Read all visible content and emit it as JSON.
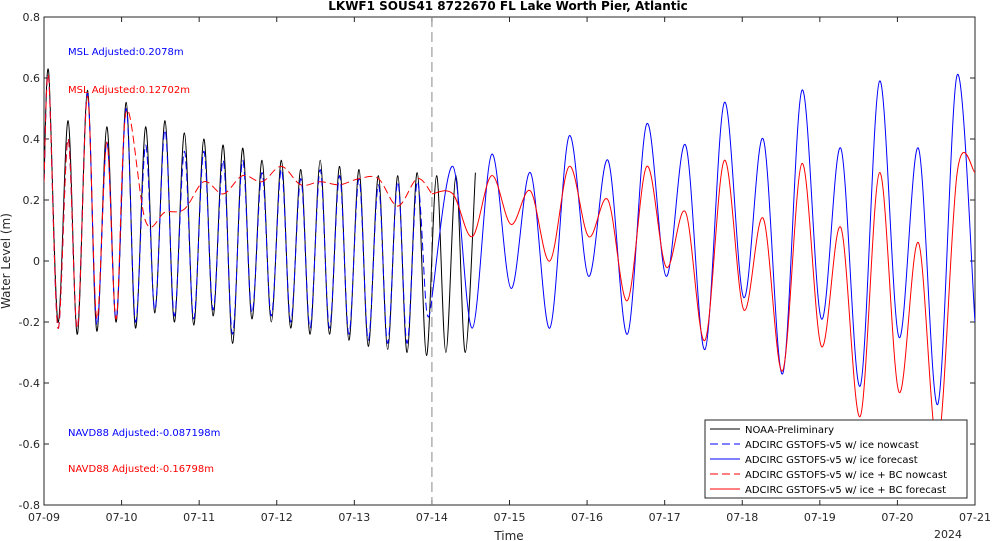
{
  "chart_data": {
    "type": "line",
    "title": "LKWF1 SOUS41 8722670 FL Lake Worth Pier, Atlantic",
    "xlabel": "Time",
    "ylabel": "Water Level (m)",
    "xlim": [
      9.0,
      21.0
    ],
    "ylim": [
      -0.8,
      0.8
    ],
    "x_ticks": [
      9,
      10,
      11,
      12,
      13,
      14,
      15,
      16,
      17,
      18,
      19,
      20,
      21
    ],
    "x_tick_labels": [
      "07-09",
      "07-10",
      "07-11",
      "07-12",
      "07-13",
      "07-14",
      "07-15",
      "07-16",
      "07-17",
      "07-18",
      "07-19",
      "07-20",
      "07-21"
    ],
    "x_year_label": "2024",
    "y_ticks": [
      -0.8,
      -0.6,
      -0.4,
      -0.2,
      0,
      0.2,
      0.4,
      0.6,
      0.8
    ],
    "y_tick_labels": [
      "-0.8",
      "-0.6",
      "-0.4",
      "-0.2",
      "0",
      "0.2",
      "0.4",
      "0.6",
      "0.8"
    ],
    "nowcast_forecast_divider_x": 14.0,
    "grid": false,
    "legend_position": "bottom-right",
    "annotations": [
      {
        "text": "MSL Adjusted:0.2078m",
        "color": "#0000ff"
      },
      {
        "text": "MSL Adjusted:0.12702m",
        "color": "#ff0000"
      },
      {
        "text": "NAVD88 Adjusted:-0.087198m",
        "color": "#0000ff"
      },
      {
        "text": "NAVD88 Adjusted:-0.16798m",
        "color": "#ff0000"
      }
    ],
    "series": [
      {
        "name": "NOAA-Preliminary",
        "color": "#000000",
        "dash": "solid",
        "x": [
          9.0,
          9.06,
          9.18,
          9.31,
          9.43,
          9.56,
          9.68,
          9.81,
          9.93,
          10.06,
          10.18,
          10.31,
          10.43,
          10.56,
          10.68,
          10.81,
          10.93,
          11.06,
          11.18,
          11.31,
          11.43,
          11.56,
          11.68,
          11.81,
          11.93,
          12.06,
          12.18,
          12.31,
          12.43,
          12.56,
          12.68,
          12.81,
          12.93,
          13.06,
          13.18,
          13.31,
          13.43,
          13.56,
          13.68,
          13.81,
          13.93,
          14.06,
          14.18,
          14.31,
          14.43,
          14.56
        ],
        "y": [
          0.26,
          0.62,
          -0.2,
          0.46,
          -0.24,
          0.56,
          -0.23,
          0.44,
          -0.2,
          0.52,
          -0.22,
          0.44,
          -0.17,
          0.46,
          -0.2,
          0.42,
          -0.21,
          0.4,
          -0.18,
          0.38,
          -0.27,
          0.37,
          -0.19,
          0.33,
          -0.2,
          0.33,
          -0.22,
          0.3,
          -0.24,
          0.33,
          -0.24,
          0.31,
          -0.26,
          0.3,
          -0.28,
          0.28,
          -0.29,
          0.28,
          -0.3,
          0.29,
          -0.31,
          0.28,
          -0.3,
          0.28,
          -0.3,
          0.29
        ]
      },
      {
        "name": "ADCIRC GSTOFS-v5 w/ ice nowcast",
        "color": "#0000ff",
        "dash": "dashed",
        "x": [
          9.0,
          9.06,
          9.18,
          9.31,
          9.43,
          9.56,
          9.68,
          9.81,
          9.93,
          10.06,
          10.18,
          10.31,
          10.43,
          10.56,
          10.68,
          10.81,
          10.93,
          11.06,
          11.18,
          11.31,
          11.43,
          11.56,
          11.68,
          11.81,
          11.93,
          12.06,
          12.18,
          12.31,
          12.43,
          12.56,
          12.68,
          12.81,
          12.93,
          13.06,
          13.18,
          13.31,
          13.43,
          13.56,
          13.68,
          13.81,
          13.93,
          14.0
        ],
        "y": [
          0.26,
          0.6,
          -0.22,
          0.4,
          -0.22,
          0.55,
          -0.21,
          0.39,
          -0.19,
          0.5,
          -0.2,
          0.38,
          -0.16,
          0.43,
          -0.18,
          0.36,
          -0.19,
          0.36,
          -0.16,
          0.33,
          -0.24,
          0.33,
          -0.17,
          0.29,
          -0.18,
          0.3,
          -0.2,
          0.27,
          -0.22,
          0.3,
          -0.22,
          0.28,
          -0.24,
          0.27,
          -0.26,
          0.25,
          -0.27,
          0.26,
          -0.27,
          0.26,
          -0.16,
          -0.13
        ]
      },
      {
        "name": "ADCIRC GSTOFS-v5 w/ ice forecast",
        "color": "#0000ff",
        "dash": "solid",
        "x": [
          14.0,
          14.27,
          14.52,
          14.77,
          15.02,
          15.27,
          15.52,
          15.77,
          16.02,
          16.27,
          16.52,
          16.77,
          17.02,
          17.27,
          17.52,
          17.77,
          18.02,
          18.27,
          18.52,
          18.77,
          19.02,
          19.27,
          19.52,
          19.77,
          20.02,
          20.27,
          20.52,
          20.77,
          21.0
        ],
        "y": [
          -0.12,
          0.31,
          -0.22,
          0.35,
          -0.09,
          0.29,
          -0.22,
          0.41,
          -0.05,
          0.33,
          -0.24,
          0.45,
          -0.05,
          0.38,
          -0.29,
          0.52,
          -0.12,
          0.4,
          -0.37,
          0.56,
          -0.19,
          0.37,
          -0.41,
          0.59,
          -0.25,
          0.37,
          -0.47,
          0.61,
          -0.2
        ]
      },
      {
        "name": "ADCIRC GSTOFS-v5 w/ ice + BC nowcast",
        "color": "#ff0000",
        "dash": "dashed",
        "x": [
          9.0,
          9.06,
          9.18,
          9.31,
          9.43,
          9.56,
          9.68,
          9.81,
          9.93,
          10.06,
          10.31,
          10.56,
          10.81,
          11.06,
          11.31,
          11.56,
          11.81,
          12.06,
          12.31,
          12.56,
          12.81,
          13.06,
          13.31,
          13.56,
          13.81,
          14.0
        ],
        "y": [
          0.26,
          0.6,
          -0.22,
          0.4,
          -0.22,
          0.54,
          -0.19,
          0.39,
          -0.19,
          0.49,
          0.13,
          0.16,
          0.17,
          0.26,
          0.22,
          0.28,
          0.26,
          0.31,
          0.25,
          0.26,
          0.25,
          0.27,
          0.27,
          0.18,
          0.27,
          0.22
        ]
      },
      {
        "name": "ADCIRC GSTOFS-v5 w/ ice + BC forecast",
        "color": "#ff0000",
        "dash": "solid",
        "x": [
          14.0,
          14.27,
          14.52,
          14.77,
          15.02,
          15.27,
          15.52,
          15.77,
          16.02,
          16.27,
          16.52,
          16.77,
          17.02,
          17.27,
          17.52,
          17.77,
          18.02,
          18.27,
          18.52,
          18.77,
          19.02,
          19.27,
          19.52,
          19.77,
          20.02,
          20.27,
          20.52,
          20.77,
          21.0
        ],
        "y": [
          0.22,
          0.22,
          0.08,
          0.28,
          0.12,
          0.23,
          0.0,
          0.31,
          0.08,
          0.2,
          -0.13,
          0.31,
          -0.02,
          0.16,
          -0.26,
          0.33,
          -0.16,
          0.14,
          -0.36,
          0.32,
          -0.28,
          0.11,
          -0.51,
          0.29,
          -0.43,
          0.06,
          -0.6,
          0.29,
          0.29
        ]
      }
    ]
  }
}
